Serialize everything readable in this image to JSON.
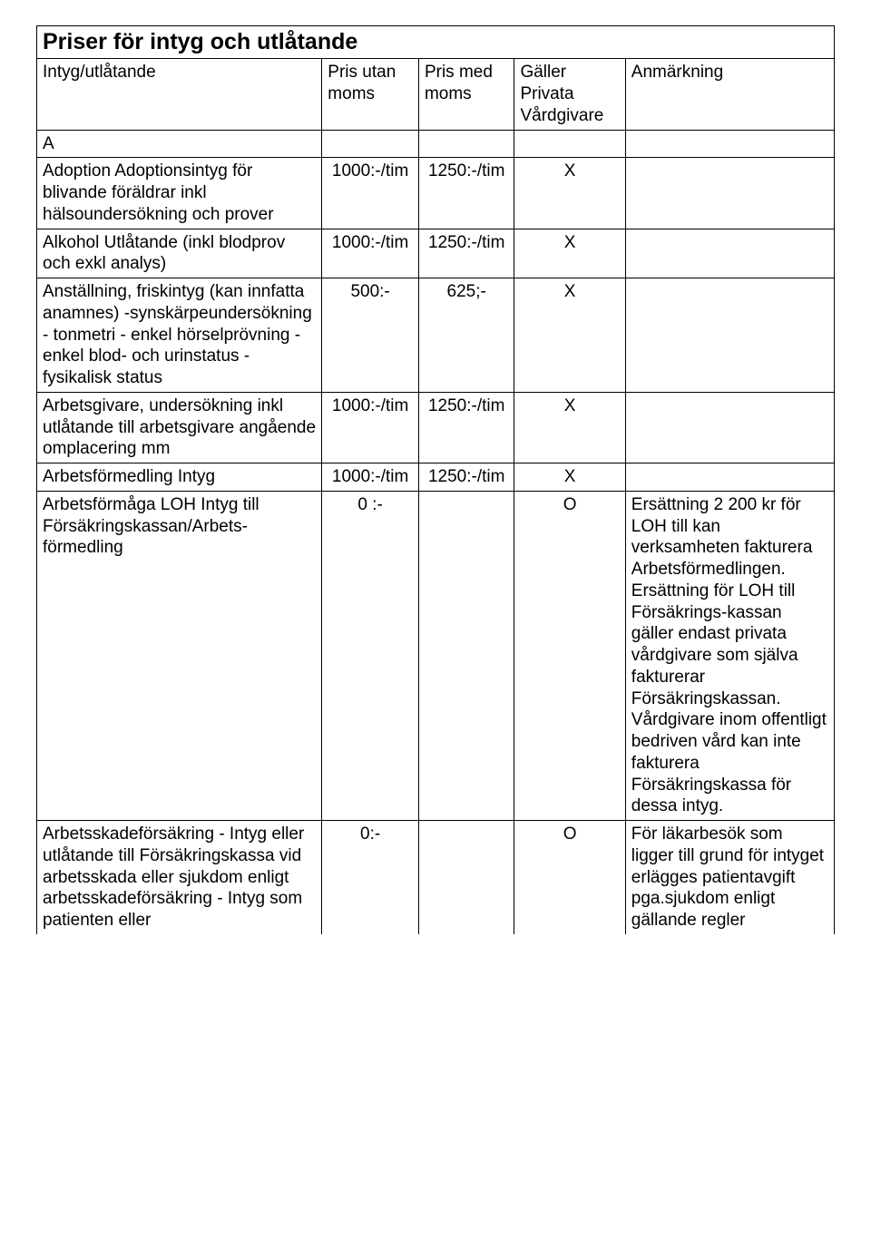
{
  "title": "Priser för intyg och utlåtande",
  "headers": {
    "name": "Intyg/utlåtande",
    "price_ex": "Pris utan moms",
    "price_inc": "Pris med moms",
    "private": "Gäller Privata Vårdgivare",
    "note": "Anmärkning"
  },
  "section_letter": "A",
  "rows": {
    "adoption": {
      "name": "Adoption\nAdoptionsintyg för blivande föräldrar inkl hälsoundersökning och prover",
      "p1": "1000:-/tim",
      "p2": "1250:-/tim",
      "priv": "X",
      "note": ""
    },
    "alkohol": {
      "name": "Alkohol\nUtlåtande (inkl blodprov och exkl analys)",
      "p1": "1000:-/tim",
      "p2": "1250:-/tim",
      "priv": "X",
      "note": ""
    },
    "anstallning": {
      "name": "Anställning, friskintyg (kan innfatta anamnes)\n-synskärpeundersökning\n- tonmetri\n- enkel hörselprövning\n- enkel blod- och urinstatus\n- fysikalisk status",
      "p1": "500:-",
      "p2": "625;-",
      "priv": "X",
      "note": ""
    },
    "arbetsgivare": {
      "name": "Arbetsgivare, undersökning inkl utlåtande till arbetsgivare angående omplacering mm",
      "p1": "1000:-/tim",
      "p2": "1250:-/tim",
      "priv": "X",
      "note": ""
    },
    "arbetsformedling": {
      "name": "Arbetsförmedling\nIntyg",
      "p1": "1000:-/tim",
      "p2": "1250:-/tim",
      "priv": "X",
      "note": ""
    },
    "arbetsformaga": {
      "name": "Arbetsförmåga LOH\nIntyg till Försäkringskassan/Arbets-förmedling",
      "p1": "0 :-",
      "p2": "",
      "priv": "O",
      "note": "Ersättning 2 200 kr för LOH till kan verksamheten fakturera Arbetsförmedlingen. Ersättning för LOH till Försäkrings-kassan gäller endast privata vårdgivare som själva fakturerar Försäkringskassan. Vårdgivare inom offentligt bedriven vård kan inte fakturera Försäkringskassa för dessa intyg."
    },
    "arbetsskade": {
      "name": "Arbetsskadeförsäkring\n- Intyg eller utlåtande till Försäkringskassa vid arbetsskada eller sjukdom enligt arbetsskadeförsäkring\n- Intyg som patienten eller",
      "p1": "0:-",
      "p2": "",
      "priv": "O",
      "note": "För läkarbesök som ligger till grund för intyget erlägges patientavgift pga.sjukdom enligt gällande regler"
    }
  }
}
